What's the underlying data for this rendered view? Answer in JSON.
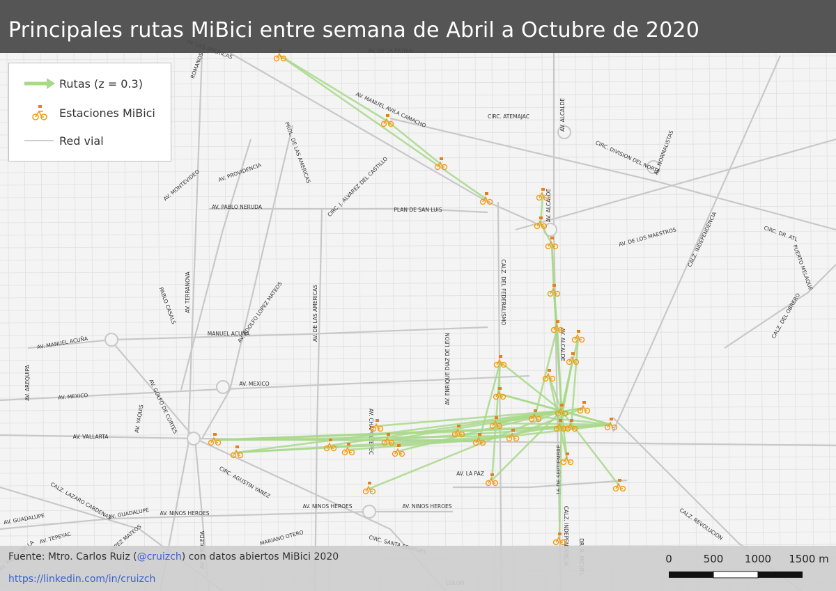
{
  "title": "Principales rutas MiBici entre semana de Abril a Octubre de 2020",
  "legend": {
    "routes_label": "Rutas (z = 0.3)",
    "stations_label": "Estaciones MiBici",
    "roads_label": "Red vial"
  },
  "footer": {
    "credit_prefix": "Fuente: Mtro. Carlos Ruiz (",
    "credit_handle": "@cruizch",
    "credit_suffix": ") con datos abiertos MiBici 2020",
    "link": "https://linkedin.com/in/cruizch"
  },
  "scale": {
    "ticks": [
      "0",
      "500",
      "1000",
      "1500 m"
    ]
  },
  "colors": {
    "route": "#a8d88a",
    "station": "#f39c12",
    "road": "#c8c8c8",
    "title_bar": "#464646"
  },
  "icons": {
    "station": "bicycle-icon",
    "route": "arrow-icon"
  },
  "streets": [
    {
      "name": "AV. DE LA PATRIA"
    },
    {
      "name": "AV. LAS AMERICAS"
    },
    {
      "name": "ROMANOS"
    },
    {
      "name": "AV. MANUEL AVILA CAMACHO"
    },
    {
      "name": "CIRC. ATEMAJAC"
    },
    {
      "name": "AV. ALCALDE"
    },
    {
      "name": "AV. NORMALISTAS"
    },
    {
      "name": "CIRC. DIVISION DEL NORTE"
    },
    {
      "name": "PROL. DE LAS AMERICAS"
    },
    {
      "name": "AV. PROVIDENCIA"
    },
    {
      "name": "AV. MONTEVIDEO"
    },
    {
      "name": "CIRC. J. ALVAREZ DEL CASTILLO"
    },
    {
      "name": "AV. PABLO NERUDA"
    },
    {
      "name": "PLAN DE SAN LUIS"
    },
    {
      "name": "AV. ALCALDE"
    },
    {
      "name": "CALZ. INDEPENDENCIA"
    },
    {
      "name": "CIRC. DR. ATL"
    },
    {
      "name": "AV. DE LOS MAESTROS"
    },
    {
      "name": "PUERTO MELAQUE"
    },
    {
      "name": "CALZ. DEL FEDERALISMO"
    },
    {
      "name": "AV. TERRANOVA"
    },
    {
      "name": "PABLO CASALS"
    },
    {
      "name": "AV. ADOLFO LOPEZ MATEOS"
    },
    {
      "name": "AV. DE LAS AMERICAS"
    },
    {
      "name": "AV. ENRIQUE DIAZ DE LEON"
    },
    {
      "name": "CALZ. DEL OBRERO"
    },
    {
      "name": "AV. ALCALDE"
    },
    {
      "name": "AV. MANUEL ACUÑA"
    },
    {
      "name": "MANUEL ACUÑA"
    },
    {
      "name": "AV. MEXICO"
    },
    {
      "name": "AV. MEXICO"
    },
    {
      "name": "AV. AREQUIPA"
    },
    {
      "name": "AV. GOLFO DE CORTES"
    },
    {
      "name": "AV. YAQUIS"
    },
    {
      "name": "AV. VALLARTA"
    },
    {
      "name": "AV. CHAPULTEPEC"
    },
    {
      "name": "CIRC. AGUSTIN YANEZ"
    },
    {
      "name": "AV. LA PAZ"
    },
    {
      "name": "16 DE SEPTIEMBRE"
    },
    {
      "name": "CALZ. LAZARO CARDENAS"
    },
    {
      "name": "AV. GUADALUPE"
    },
    {
      "name": "AV. GUADALUPE"
    },
    {
      "name": "AV. NINOS HEROES"
    },
    {
      "name": "AV. NINOS HEROES"
    },
    {
      "name": "AV. NINOS HEROES"
    },
    {
      "name": "CALZ. REVOLUCION"
    },
    {
      "name": "AV. TEPEYAC"
    },
    {
      "name": "MARIANO OTERO"
    },
    {
      "name": "CIRC. SANTA EDWIGES"
    },
    {
      "name": "AV. ARBOLEDA"
    },
    {
      "name": "CALZ. INDEPENDENCIA"
    },
    {
      "name": "DR. R. MICHEL"
    },
    {
      "name": "AV. LOPEZ MATEOS"
    },
    {
      "name": "AV. PASEO DE LA"
    },
    {
      "name": "COLON"
    }
  ]
}
